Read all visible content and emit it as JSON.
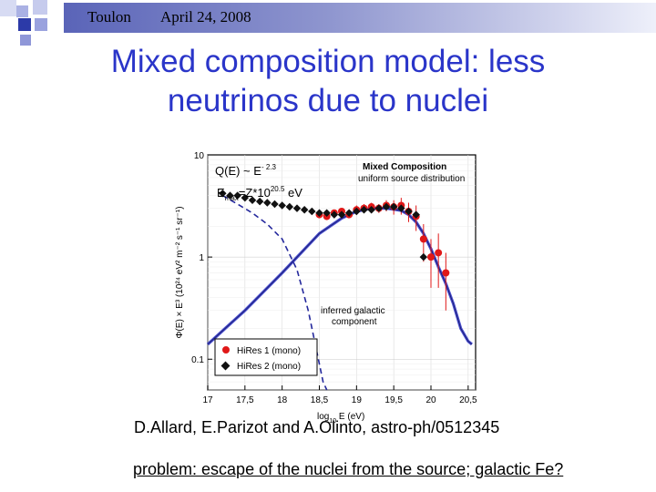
{
  "header": {
    "location": "Toulon",
    "date": "April 24, 2008"
  },
  "slide": {
    "title_line1": "Mixed composition model: less",
    "title_line2": "neutrinos due to nuclei"
  },
  "citation": "D.Allard, E.Parizot and A.Olinto, astro-ph/0512345",
  "note": "problem: escape of the nuclei from the source; galactic Fe?",
  "colors": {
    "accent": "#2a35c9",
    "model": "#3b3fa8",
    "hires1": "#e01818",
    "hires2": "#111111"
  },
  "chart_data": {
    "type": "scatter",
    "xlabel_main": "log",
    "xlabel_sub": "10",
    "xlabel_rest": " E (eV)",
    "ylabel": "Φ(E) × E³ (10²⁴ eV² m⁻² s⁻¹ sr⁻¹)",
    "xlim": [
      17,
      20.6
    ],
    "ylim": [
      0.05,
      10
    ],
    "yscale": "log",
    "x_ticks": [
      "17",
      "17,5",
      "18",
      "18,5",
      "19",
      "19,5",
      "20",
      "20,5"
    ],
    "x_tick_values": [
      17,
      17.5,
      18,
      18.5,
      19,
      19.5,
      20,
      20.5
    ],
    "y_ticks": [
      "0.1",
      "1",
      "10"
    ],
    "y_tick_values": [
      0.1,
      1,
      10
    ],
    "source_spectrum_label": "Q(E) ~ E",
    "source_spectrum_exp": "- 2.3",
    "emax_label": "E",
    "emax_sub": "max",
    "emax_rhs": "=Z*10",
    "emax_exp": "20.5",
    "emax_unit": " eV",
    "model_title": "Mixed Composition",
    "model_subtitle": "uniform source distribution",
    "galactic_label_1": "inferred galactic",
    "galactic_label_2": "component",
    "series": [
      {
        "name": "HiRes 1 (mono)",
        "marker": "circle",
        "color": "#e01818",
        "x": [
          18.5,
          18.6,
          18.7,
          18.8,
          18.9,
          19.0,
          19.1,
          19.2,
          19.3,
          19.4,
          19.5,
          19.6,
          19.7,
          19.8,
          19.9,
          20.0,
          20.1,
          20.2
        ],
        "y": [
          2.6,
          2.5,
          2.7,
          2.8,
          2.6,
          2.9,
          3.0,
          3.1,
          3.0,
          3.2,
          3.1,
          3.2,
          2.8,
          2.5,
          1.5,
          1.0,
          1.1,
          0.7
        ],
        "err": [
          0.2,
          0.2,
          0.2,
          0.2,
          0.2,
          0.3,
          0.3,
          0.3,
          0.3,
          0.4,
          0.5,
          0.6,
          0.6,
          0.7,
          0.6,
          0.5,
          0.6,
          0.4
        ]
      },
      {
        "name": "HiRes 2 (mono)",
        "marker": "diamond",
        "color": "#111111",
        "x": [
          17.2,
          17.3,
          17.4,
          17.5,
          17.6,
          17.7,
          17.8,
          17.9,
          18.0,
          18.1,
          18.2,
          18.3,
          18.4,
          18.5,
          18.6,
          18.7,
          18.8,
          18.9,
          19.0,
          19.1,
          19.2,
          19.3,
          19.4,
          19.5,
          19.6,
          19.7,
          19.8,
          19.9
        ],
        "y": [
          4.2,
          4.0,
          4.0,
          3.8,
          3.6,
          3.5,
          3.4,
          3.3,
          3.2,
          3.1,
          3.0,
          2.9,
          2.8,
          2.7,
          2.7,
          2.6,
          2.6,
          2.7,
          2.8,
          2.9,
          2.9,
          3.0,
          3.1,
          3.1,
          3.0,
          2.8,
          2.6,
          1.0
        ]
      }
    ],
    "curves": [
      {
        "name": "mixed composition model",
        "style": "solid",
        "x": [
          17.0,
          17.5,
          18.0,
          18.5,
          18.8,
          19.0,
          19.2,
          19.4,
          19.6,
          19.7,
          19.8,
          19.9,
          20.0,
          20.1,
          20.2,
          20.3,
          20.4,
          20.5,
          20.55
        ],
        "y": [
          0.14,
          0.3,
          0.7,
          1.7,
          2.4,
          2.8,
          3.0,
          3.0,
          2.85,
          2.6,
          2.2,
          1.7,
          1.2,
          0.8,
          0.55,
          0.35,
          0.2,
          0.15,
          0.14
        ]
      },
      {
        "name": "inferred galactic component",
        "style": "dashed",
        "x": [
          17.2,
          17.4,
          17.6,
          17.8,
          18.0,
          18.2,
          18.35,
          18.5,
          18.55,
          18.6
        ],
        "y": [
          4.0,
          3.3,
          2.7,
          2.1,
          1.5,
          0.75,
          0.3,
          0.09,
          0.06,
          0.05
        ]
      }
    ]
  }
}
